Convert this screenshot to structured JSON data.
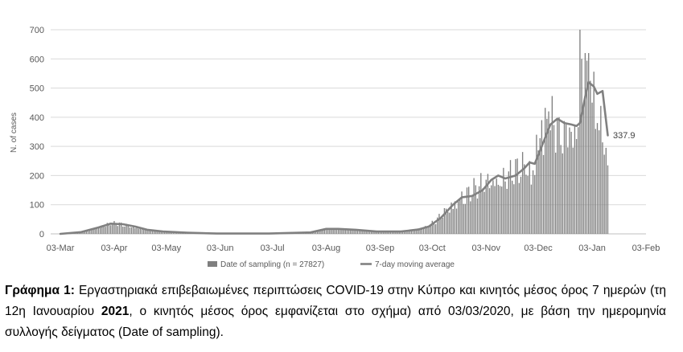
{
  "chart_data": {
    "type": "bar",
    "title": "",
    "xlabel": "",
    "ylabel": "N. of cases",
    "ylim": [
      0,
      700
    ],
    "yticks": [
      "0",
      "100",
      "200",
      "300",
      "400",
      "500",
      "600",
      "700"
    ],
    "xticks": [
      "03-Mar",
      "03-Apr",
      "03-May",
      "03-Jun",
      "03-Jul",
      "03-Aug",
      "03-Sep",
      "03-Oct",
      "03-Nov",
      "03-Dec",
      "03-Jan",
      "03-Feb"
    ],
    "x_start": "2020-03-03",
    "grid": true,
    "legend_position": "bottom",
    "last_ma_label": "337.9",
    "series": [
      {
        "name": "Date of sampling (n = 27827)",
        "kind": "bar",
        "color": "#7f7f7f",
        "anchors": [
          [
            "2020-03-03",
            0
          ],
          [
            "2020-03-10",
            4
          ],
          [
            "2020-03-17",
            10
          ],
          [
            "2020-03-22",
            20
          ],
          [
            "2020-03-28",
            30
          ],
          [
            "2020-04-01",
            38
          ],
          [
            "2020-04-05",
            36
          ],
          [
            "2020-04-10",
            30
          ],
          [
            "2020-04-15",
            25
          ],
          [
            "2020-04-22",
            15
          ],
          [
            "2020-05-01",
            8
          ],
          [
            "2020-05-10",
            5
          ],
          [
            "2020-05-20",
            2
          ],
          [
            "2020-06-01",
            1
          ],
          [
            "2020-07-01",
            1
          ],
          [
            "2020-07-20",
            2
          ],
          [
            "2020-07-28",
            8
          ],
          [
            "2020-08-03",
            20
          ],
          [
            "2020-08-10",
            18
          ],
          [
            "2020-08-18",
            14
          ],
          [
            "2020-08-25",
            12
          ],
          [
            "2020-09-01",
            7
          ],
          [
            "2020-09-10",
            6
          ],
          [
            "2020-09-20",
            12
          ],
          [
            "2020-09-30",
            25
          ],
          [
            "2020-10-05",
            45
          ],
          [
            "2020-10-10",
            80
          ],
          [
            "2020-10-15",
            110
          ],
          [
            "2020-10-20",
            135
          ],
          [
            "2020-10-25",
            150
          ],
          [
            "2020-11-01",
            180
          ],
          [
            "2020-11-05",
            200
          ],
          [
            "2020-11-10",
            190
          ],
          [
            "2020-11-15",
            205
          ],
          [
            "2020-11-20",
            225
          ],
          [
            "2020-11-25",
            250
          ],
          [
            "2020-11-30",
            230
          ],
          [
            "2020-12-03",
            300
          ],
          [
            "2020-12-07",
            380
          ],
          [
            "2020-12-12",
            390
          ],
          [
            "2020-12-18",
            370
          ],
          [
            "2020-12-22",
            355
          ],
          [
            "2020-12-26",
            420
          ],
          [
            "2020-12-28",
            550
          ],
          [
            "2021-01-01",
            550
          ],
          [
            "2021-01-04",
            470
          ],
          [
            "2021-01-07",
            400
          ],
          [
            "2021-01-09",
            350
          ],
          [
            "2021-01-12",
            300
          ]
        ],
        "spikes": [
          [
            "2020-12-02",
            340
          ],
          [
            "2020-12-05",
            390
          ],
          [
            "2020-12-09",
            420
          ],
          [
            "2020-12-15",
            400
          ],
          [
            "2020-12-21",
            365
          ],
          [
            "2020-12-24",
            375
          ],
          [
            "2020-12-27",
            700
          ],
          [
            "2020-12-28",
            600
          ],
          [
            "2020-12-30",
            620
          ],
          [
            "2021-01-01",
            620
          ],
          [
            "2021-01-02",
            525
          ],
          [
            "2021-01-03",
            450
          ],
          [
            "2021-01-05",
            360
          ],
          [
            "2021-01-06",
            380
          ],
          [
            "2021-01-11",
            295
          ],
          [
            "2021-01-12",
            235
          ]
        ]
      },
      {
        "name": "7-day moving average",
        "kind": "line",
        "color": "#808080",
        "points": [
          [
            "2020-03-03",
            0
          ],
          [
            "2020-03-15",
            6
          ],
          [
            "2020-03-25",
            22
          ],
          [
            "2020-04-01",
            35
          ],
          [
            "2020-04-08",
            33
          ],
          [
            "2020-04-15",
            25
          ],
          [
            "2020-04-22",
            14
          ],
          [
            "2020-05-01",
            8
          ],
          [
            "2020-05-15",
            4
          ],
          [
            "2020-06-01",
            1
          ],
          [
            "2020-07-01",
            1
          ],
          [
            "2020-07-25",
            5
          ],
          [
            "2020-08-03",
            17
          ],
          [
            "2020-08-10",
            17
          ],
          [
            "2020-08-20",
            14
          ],
          [
            "2020-09-01",
            8
          ],
          [
            "2020-09-15",
            8
          ],
          [
            "2020-09-25",
            15
          ],
          [
            "2020-10-01",
            25
          ],
          [
            "2020-10-08",
            55
          ],
          [
            "2020-10-15",
            100
          ],
          [
            "2020-10-20",
            125
          ],
          [
            "2020-10-26",
            130
          ],
          [
            "2020-11-01",
            150
          ],
          [
            "2020-11-06",
            185
          ],
          [
            "2020-11-10",
            200
          ],
          [
            "2020-11-14",
            190
          ],
          [
            "2020-11-20",
            200
          ],
          [
            "2020-11-25",
            225
          ],
          [
            "2020-11-28",
            245
          ],
          [
            "2020-12-01",
            240
          ],
          [
            "2020-12-05",
            300
          ],
          [
            "2020-12-10",
            375
          ],
          [
            "2020-12-14",
            395
          ],
          [
            "2020-12-18",
            380
          ],
          [
            "2020-12-22",
            375
          ],
          [
            "2020-12-25",
            370
          ],
          [
            "2020-12-27",
            380
          ],
          [
            "2020-12-30",
            470
          ],
          [
            "2021-01-01",
            520
          ],
          [
            "2021-01-04",
            505
          ],
          [
            "2021-01-06",
            480
          ],
          [
            "2021-01-09",
            490
          ],
          [
            "2021-01-12",
            337.9
          ]
        ]
      }
    ]
  },
  "caption": {
    "label": "Γράφημα 1:",
    "text_a": " Εργαστηριακά επιβεβαιωμένες περιπτώσεις COVID-19 στην Κύπρο και κινητός μέσος όρος 7 ημερών (τη 12η Ιανουαρίου ",
    "year": "2021",
    "text_b": ", ο κινητός μέσος όρος εμφανίζεται στο σχήμα) από 03/03/2020, με βάση την ημερομηνία συλλογής δείγματος (Date of sampling)."
  }
}
